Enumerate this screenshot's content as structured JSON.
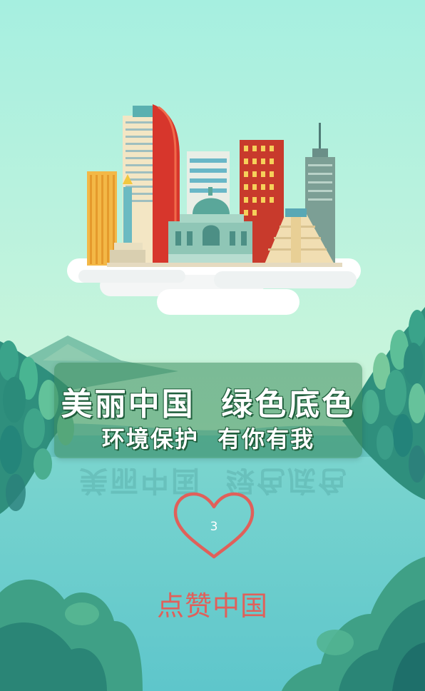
{
  "slogan": {
    "line1": "美丽中国  绿色底色",
    "line2": "环境保护  有你有我"
  },
  "like": {
    "count": "3",
    "label": "点赞中国"
  },
  "colors": {
    "sky_top": "#a6efe0",
    "sky_bottom": "#d7f6c8",
    "lake": "#6ccfce",
    "banner": "#3c8c5f",
    "heart": "#e0605a"
  },
  "icons": {
    "like": "heart-icon",
    "illustration": "city-skyline-on-cloud"
  }
}
